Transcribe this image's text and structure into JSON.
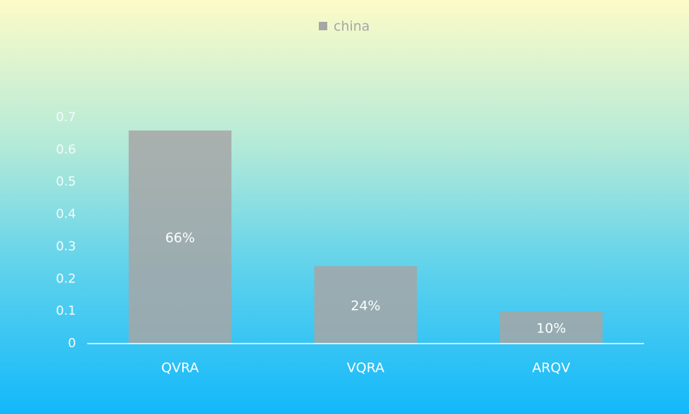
{
  "chart_data": {
    "type": "bar",
    "categories": [
      "QVRA",
      "VQRA",
      "ARQV"
    ],
    "series": [
      {
        "name": "china",
        "color": "#a6a6a6",
        "values": [
          0.66,
          0.24,
          0.1
        ],
        "value_labels": [
          "66%",
          "24%",
          "10%"
        ]
      }
    ],
    "ylim": [
      0,
      0.7
    ],
    "yticks": [
      0,
      0.1,
      0.2,
      0.3,
      0.4,
      0.5,
      0.6,
      0.7
    ],
    "grid": false,
    "legend": "top"
  }
}
